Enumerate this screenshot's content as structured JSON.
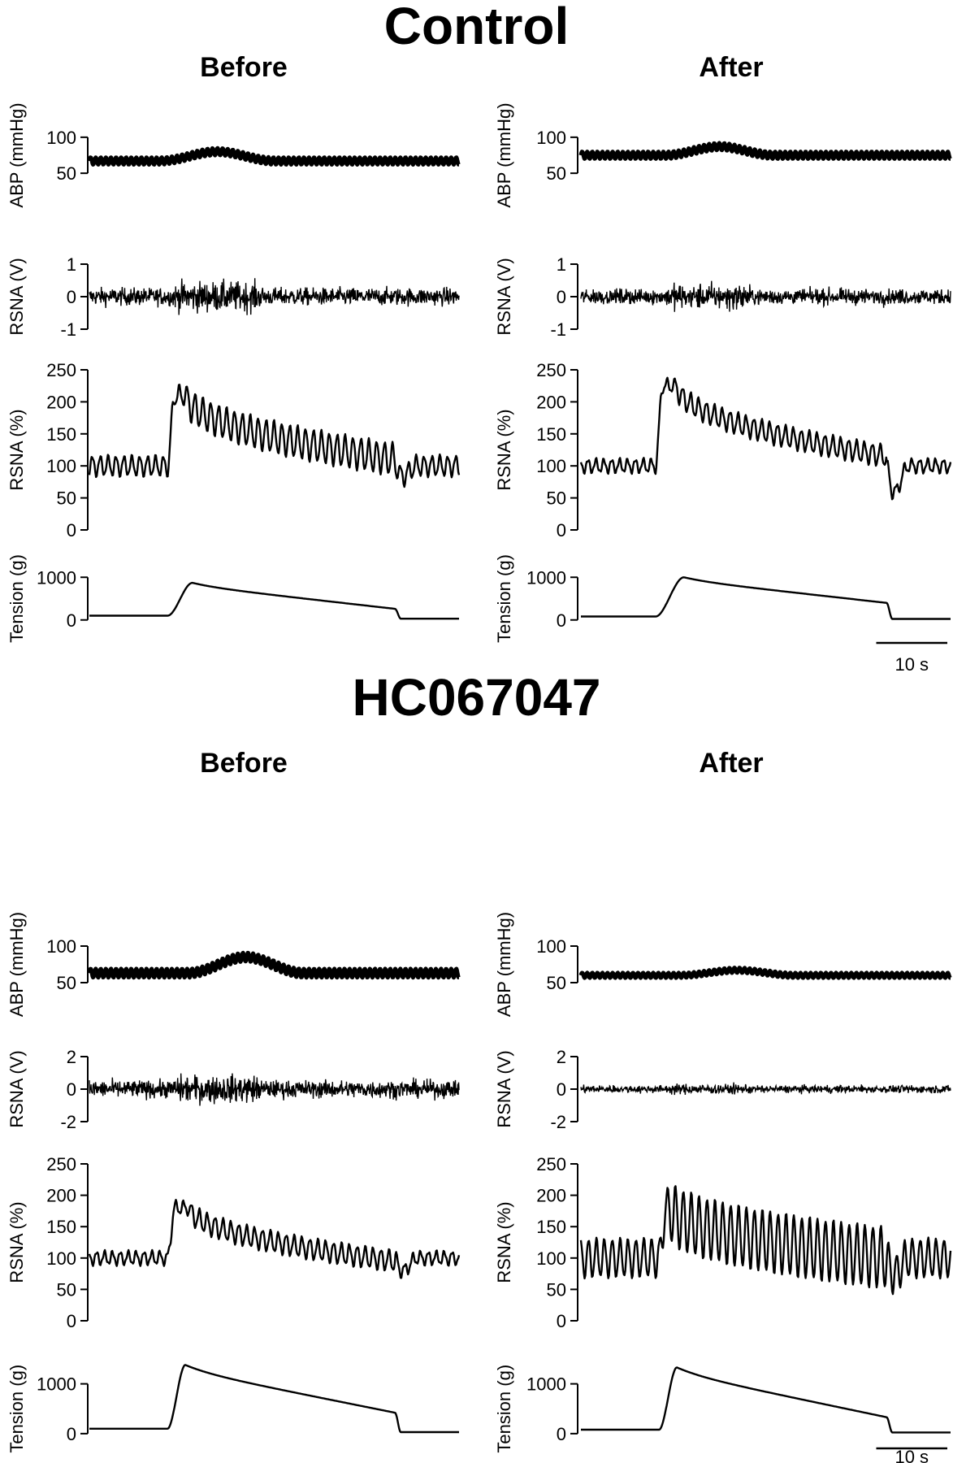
{
  "groups": [
    {
      "title": "Control"
    },
    {
      "title": "HC067047"
    }
  ],
  "columns": [
    {
      "title": "Before"
    },
    {
      "title": "After"
    }
  ],
  "row_labels": [
    "ABP (mmHg)",
    "RSNA (V)",
    "RSNA (%)",
    "Tension (g)"
  ],
  "scale_bar": {
    "label": "10 s",
    "seconds": 10
  },
  "chart_data": [
    {
      "type": "line",
      "group": "Control",
      "column": "Before",
      "duration_s": 52,
      "panels": [
        {
          "ylabel": "ABP (mmHg)",
          "yticks": [
            50,
            100
          ],
          "ylim": [
            40,
            110
          ],
          "trace": "oscillating",
          "baseline": 67,
          "peak": 80,
          "peak_start_s": 10,
          "peak_end_s": 26,
          "amplitude": 10,
          "rate_hz": 1.4
        },
        {
          "ylabel": "RSNA (V)",
          "yticks": [
            -1,
            0,
            1
          ],
          "ylim": [
            -1,
            1
          ],
          "trace": "noise",
          "baseline": 0,
          "amplitude": 0.35,
          "burst_start_s": 11,
          "burst_end_s": 25,
          "burst_amplitude": 0.6
        },
        {
          "ylabel": "RSNA (%)",
          "yticks": [
            0,
            50,
            100,
            150,
            200,
            250
          ],
          "ylim": [
            0,
            250
          ],
          "trace": "smooth",
          "baseline": 100,
          "peak": 210,
          "onset_s": 11,
          "peak_end_s": 13.5,
          "decay_to": 110,
          "decay_end_s": 43,
          "dip": 85,
          "osc_amplitude": 15,
          "osc_rate_hz": 0.9
        },
        {
          "ylabel": "Tension (g)",
          "yticks": [
            0,
            1000
          ],
          "ylim": [
            -100,
            1100
          ],
          "trace": "tension",
          "baseline": 100,
          "peak": 870,
          "onset_s": 11,
          "peak_s": 14.5,
          "end_value": 260,
          "release_s": 43
        }
      ]
    },
    {
      "type": "line",
      "group": "Control",
      "column": "After",
      "duration_s": 52,
      "panels": [
        {
          "ylabel": "ABP (mmHg)",
          "yticks": [
            50,
            100
          ],
          "ylim": [
            40,
            110
          ],
          "trace": "oscillating",
          "baseline": 75,
          "peak": 87,
          "peak_start_s": 12,
          "peak_end_s": 27,
          "amplitude": 10,
          "rate_hz": 1.4
        },
        {
          "ylabel": "RSNA (V)",
          "yticks": [
            -1,
            0,
            1
          ],
          "ylim": [
            -1,
            1
          ],
          "trace": "noise",
          "baseline": 0,
          "amplitude": 0.3,
          "burst_start_s": 11,
          "burst_end_s": 25,
          "burst_amplitude": 0.5
        },
        {
          "ylabel": "RSNA (%)",
          "yticks": [
            0,
            50,
            100,
            150,
            200,
            250
          ],
          "ylim": [
            0,
            250
          ],
          "trace": "smooth",
          "baseline": 100,
          "peak": 225,
          "onset_s": 10.5,
          "peak_end_s": 13.5,
          "decay_to": 115,
          "decay_end_s": 43,
          "dip": 60,
          "osc_amplitude": 10,
          "osc_rate_hz": 0.9
        },
        {
          "ylabel": "Tension (g)",
          "yticks": [
            0,
            1000
          ],
          "ylim": [
            -100,
            1100
          ],
          "trace": "tension",
          "baseline": 80,
          "peak": 1000,
          "onset_s": 10.5,
          "peak_s": 14.5,
          "end_value": 400,
          "release_s": 43
        }
      ]
    },
    {
      "type": "line",
      "group": "HC067047",
      "column": "Before",
      "duration_s": 52,
      "panels": [
        {
          "ylabel": "ABP (mmHg)",
          "yticks": [
            50,
            100
          ],
          "ylim": [
            40,
            110
          ],
          "trace": "oscillating",
          "baseline": 63,
          "peak": 85,
          "peak_start_s": 14,
          "peak_end_s": 30,
          "amplitude": 12,
          "rate_hz": 1.4
        },
        {
          "ylabel": "RSNA (V)",
          "yticks": [
            -2,
            0,
            2
          ],
          "ylim": [
            -2,
            2
          ],
          "trace": "noise",
          "baseline": 0,
          "amplitude": 0.7,
          "burst_start_s": 11,
          "burst_end_s": 25,
          "burst_amplitude": 1.1
        },
        {
          "ylabel": "RSNA (%)",
          "yticks": [
            0,
            50,
            100,
            150,
            200,
            250
          ],
          "ylim": [
            0,
            250
          ],
          "trace": "smooth",
          "baseline": 100,
          "peak": 180,
          "onset_s": 11,
          "peak_end_s": 14,
          "decay_to": 95,
          "decay_end_s": 43,
          "dip": 80,
          "osc_amplitude": 10,
          "osc_rate_hz": 0.9
        },
        {
          "ylabel": "Tension (g)",
          "yticks": [
            0,
            1000
          ],
          "ylim": [
            -100,
            1500
          ],
          "trace": "tension",
          "baseline": 100,
          "peak": 1380,
          "onset_s": 11,
          "peak_s": 13.5,
          "end_value": 420,
          "release_s": 43
        }
      ]
    },
    {
      "type": "line",
      "group": "HC067047",
      "column": "After",
      "duration_s": 52,
      "panels": [
        {
          "ylabel": "ABP (mmHg)",
          "yticks": [
            50,
            100
          ],
          "ylim": [
            40,
            110
          ],
          "trace": "oscillating",
          "baseline": 60,
          "peak": 67,
          "peak_start_s": 14,
          "peak_end_s": 30,
          "amplitude": 7,
          "rate_hz": 1.4
        },
        {
          "ylabel": "RSNA (V)",
          "yticks": [
            -2,
            0,
            2
          ],
          "ylim": [
            -2,
            2
          ],
          "trace": "noise",
          "baseline": 0,
          "amplitude": 0.3,
          "burst_start_s": 11,
          "burst_end_s": 25,
          "burst_amplitude": 0.4
        },
        {
          "ylabel": "RSNA (%)",
          "yticks": [
            0,
            50,
            100,
            150,
            200,
            250
          ],
          "ylim": [
            0,
            250
          ],
          "trace": "smooth",
          "baseline": 100,
          "peak": 180,
          "onset_s": 11,
          "peak_end_s": 12.5,
          "decay_to": 100,
          "decay_end_s": 43,
          "dip": 75,
          "osc_amplitude": 30,
          "osc_rate_hz": 0.9
        },
        {
          "ylabel": "Tension (g)",
          "yticks": [
            0,
            1000
          ],
          "ylim": [
            -100,
            1500
          ],
          "trace": "tension",
          "baseline": 80,
          "peak": 1330,
          "onset_s": 11,
          "peak_s": 13.5,
          "end_value": 330,
          "release_s": 43
        }
      ]
    }
  ]
}
